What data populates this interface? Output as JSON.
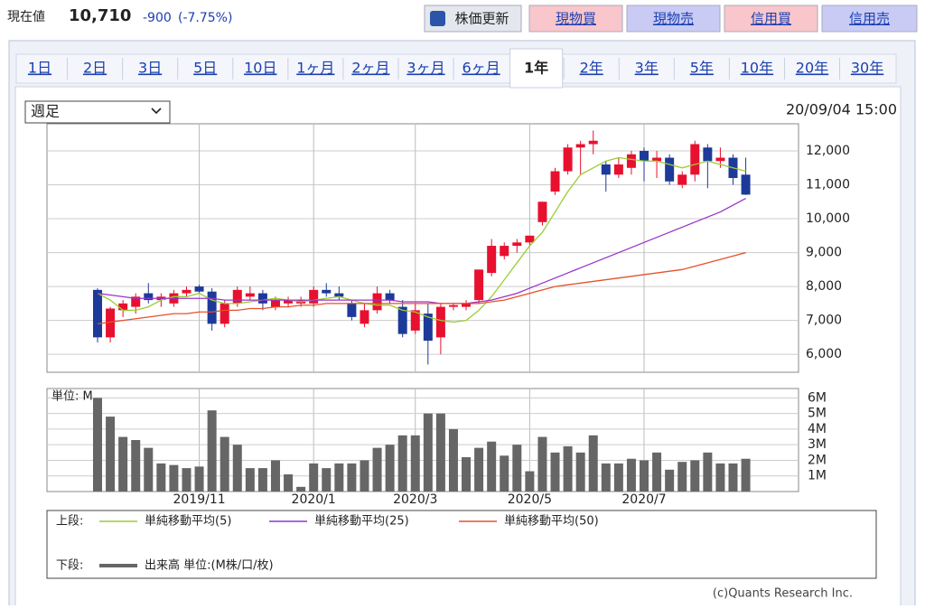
{
  "header": {
    "label": "現在値",
    "price": "10,710",
    "change": "-900",
    "change_pct": "(-7.75%)"
  },
  "buttons": [
    "株価更新",
    "現物買",
    "現物売",
    "信用買",
    "信用売"
  ],
  "tabs": [
    {
      "label": "1日"
    },
    {
      "label": "2日"
    },
    {
      "label": "3日"
    },
    {
      "label": "5日"
    },
    {
      "label": "10日"
    },
    {
      "label": "1ヶ月"
    },
    {
      "label": "2ヶ月"
    },
    {
      "label": "3ヶ月"
    },
    {
      "label": "6ヶ月"
    },
    {
      "label": "1年",
      "active": true
    },
    {
      "label": "2年"
    },
    {
      "label": "3年"
    },
    {
      "label": "5年"
    },
    {
      "label": "10年"
    },
    {
      "label": "20年"
    },
    {
      "label": "30年"
    }
  ],
  "select": "週足",
  "timestamp": "20/09/04 15:00",
  "copyright": "(c)Quants Research Inc.",
  "chart_data": [
    {
      "type": "candlestick",
      "legend_label": "上段:",
      "up_color": "#e8102f",
      "down_color": "#1d3a9a",
      "open": [
        7900,
        6500,
        7300,
        7400,
        7800,
        7600,
        7500,
        7800,
        8000,
        7850,
        6900,
        7500,
        7700,
        7800,
        7400,
        7500,
        7500,
        7500,
        7900,
        7800,
        7500,
        6900,
        7300,
        7800,
        7400,
        6700,
        7200,
        6500,
        7400,
        7400,
        7600,
        8400,
        8900,
        9200,
        9300,
        9900,
        10800,
        11400,
        12100,
        12200,
        11600,
        11300,
        11500,
        12000,
        11700,
        11800,
        11000,
        11300,
        12100,
        11700,
        11800,
        11300
      ],
      "high": [
        7950,
        7400,
        7600,
        7800,
        8100,
        7800,
        7900,
        8000,
        8050,
        7950,
        7600,
        8000,
        8000,
        7900,
        7700,
        7700,
        7700,
        8000,
        8100,
        8000,
        7600,
        7500,
        8000,
        7900,
        7600,
        7500,
        7500,
        7500,
        7500,
        7600,
        8500,
        9400,
        9300,
        9400,
        9500,
        10500,
        11500,
        12200,
        12300,
        12600,
        11700,
        11800,
        12000,
        12100,
        12000,
        11900,
        11400,
        12300,
        12200,
        12100,
        11900,
        11800
      ],
      "low": [
        6350,
        6350,
        7100,
        7200,
        7500,
        7400,
        7400,
        7700,
        7800,
        6700,
        6800,
        7400,
        7600,
        7300,
        7300,
        7400,
        7400,
        7400,
        7700,
        7600,
        7000,
        6800,
        7200,
        7500,
        6500,
        6600,
        5700,
        6000,
        7300,
        7300,
        7500,
        8300,
        8800,
        9000,
        9200,
        9800,
        10700,
        11300,
        11300,
        11900,
        10800,
        11200,
        11300,
        11100,
        11200,
        11000,
        10900,
        11100,
        10900,
        11500,
        11000,
        10700
      ],
      "close": [
        6500,
        7350,
        7500,
        7700,
        7600,
        7700,
        7800,
        7900,
        7850,
        6900,
        7500,
        7900,
        7800,
        7500,
        7600,
        7600,
        7600,
        7900,
        7800,
        7700,
        7100,
        7300,
        7800,
        7600,
        6600,
        7300,
        6400,
        7400,
        7450,
        7500,
        8500,
        9200,
        9200,
        9300,
        9500,
        10500,
        11400,
        12100,
        12200,
        12300,
        11300,
        11600,
        11900,
        11700,
        11800,
        11100,
        11300,
        12200,
        11700,
        11800,
        11200,
        10710
      ],
      "series": [
        {
          "name": "単純移動平均(5)",
          "color": "#9acd32",
          "values": [
            7800,
            7600,
            7300,
            7300,
            7400,
            7600,
            7700,
            7700,
            7800,
            7600,
            7500,
            7500,
            7550,
            7600,
            7650,
            7600,
            7550,
            7600,
            7650,
            7700,
            7600,
            7500,
            7450,
            7450,
            7300,
            7250,
            7100,
            7000,
            6950,
            7000,
            7300,
            7700,
            8200,
            8700,
            9200,
            9600,
            10200,
            10800,
            11300,
            11500,
            11700,
            11800,
            11750,
            11700,
            11700,
            11600,
            11500,
            11600,
            11700,
            11600,
            11500,
            11400
          ]
        },
        {
          "name": "単純移動平均(25)",
          "color": "#9933cc",
          "values": [
            7800,
            7750,
            7700,
            7650,
            7650,
            7650,
            7650,
            7650,
            7650,
            7650,
            7600,
            7600,
            7600,
            7600,
            7600,
            7600,
            7600,
            7600,
            7600,
            7600,
            7600,
            7600,
            7600,
            7600,
            7550,
            7550,
            7550,
            7500,
            7500,
            7500,
            7550,
            7600,
            7700,
            7800,
            7950,
            8100,
            8250,
            8400,
            8550,
            8700,
            8850,
            9000,
            9150,
            9300,
            9450,
            9600,
            9750,
            9900,
            10050,
            10200,
            10400,
            10600
          ]
        },
        {
          "name": "単純移動平均(50)",
          "color": "#e8502a",
          "values": [
            6900,
            6950,
            7000,
            7050,
            7100,
            7150,
            7200,
            7200,
            7250,
            7250,
            7300,
            7300,
            7350,
            7350,
            7400,
            7400,
            7450,
            7450,
            7500,
            7500,
            7500,
            7500,
            7500,
            7500,
            7500,
            7500,
            7500,
            7500,
            7500,
            7500,
            7500,
            7550,
            7600,
            7700,
            7800,
            7900,
            8000,
            8050,
            8100,
            8150,
            8200,
            8250,
            8300,
            8350,
            8400,
            8450,
            8500,
            8600,
            8700,
            8800,
            8900,
            9000
          ]
        }
      ],
      "ylim": [
        5470,
        12800
      ],
      "yticks": [
        {
          "value": 6000,
          "label": "6,000"
        },
        {
          "value": 7000,
          "label": "7,000"
        },
        {
          "value": 8000,
          "label": "8,000"
        },
        {
          "value": 9000,
          "label": "9,000"
        },
        {
          "value": 10000,
          "label": "10,000"
        },
        {
          "value": 11000,
          "label": "11,000"
        },
        {
          "value": 12000,
          "label": "12,000"
        }
      ],
      "grid": true
    },
    {
      "type": "bar",
      "title": "単位: M",
      "legend_label": "下段:",
      "categories": [
        null,
        null,
        null,
        null,
        null,
        null,
        null,
        null,
        "2019/11",
        null,
        null,
        null,
        null,
        null,
        null,
        null,
        null,
        "2020/1",
        null,
        null,
        null,
        null,
        null,
        null,
        null,
        "2020/3",
        null,
        null,
        null,
        null,
        null,
        null,
        null,
        null,
        "2020/5",
        null,
        null,
        null,
        null,
        null,
        null,
        null,
        null,
        "2020/7",
        null,
        null,
        null,
        null,
        null,
        null,
        null,
        null
      ],
      "series": [
        {
          "name": "出来高 単位:(M株/口/枚)",
          "color": "#666666",
          "values": [
            6,
            4.8,
            3.5,
            3.3,
            2.8,
            1.8,
            1.7,
            1.5,
            1.6,
            5.2,
            3.5,
            3,
            1.5,
            1.5,
            2,
            1.1,
            0.3,
            1.8,
            1.5,
            1.8,
            1.8,
            2,
            2.8,
            3,
            3.6,
            3.6,
            5,
            5,
            4,
            2.2,
            2.8,
            3.2,
            2.3,
            3,
            1.3,
            3.5,
            2.5,
            2.9,
            2.5,
            3.6,
            1.8,
            1.8,
            2.1,
            2,
            2.5,
            1.4,
            1.9,
            2,
            2.5,
            1.8,
            1.8,
            2.1
          ]
        }
      ],
      "ylim": [
        0,
        6.6
      ],
      "yticks": [
        {
          "value": 1,
          "label": "1M"
        },
        {
          "value": 2,
          "label": "2M"
        },
        {
          "value": 3,
          "label": "3M"
        },
        {
          "value": 4,
          "label": "4M"
        },
        {
          "value": 5,
          "label": "5M"
        },
        {
          "value": 6,
          "label": "6M"
        }
      ],
      "grid": true
    }
  ]
}
